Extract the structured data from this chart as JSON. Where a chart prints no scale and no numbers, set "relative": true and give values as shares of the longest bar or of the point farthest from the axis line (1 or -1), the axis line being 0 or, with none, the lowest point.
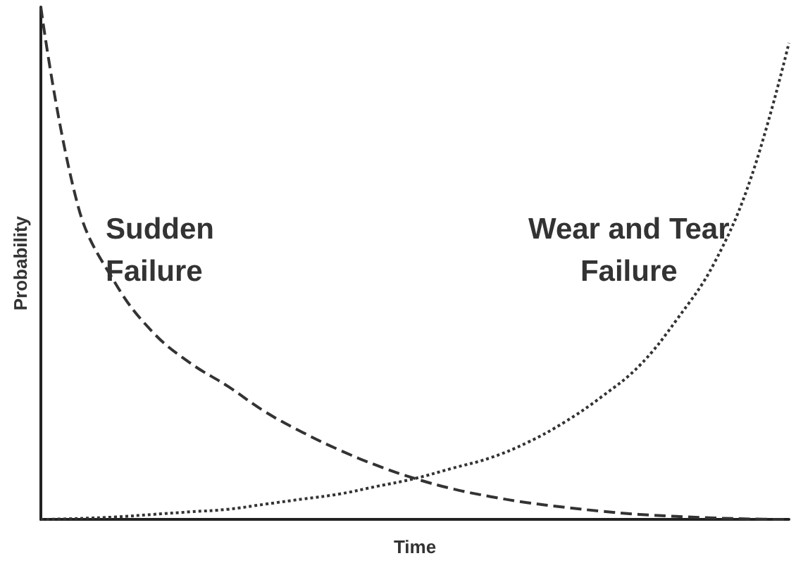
{
  "chart_data": {
    "type": "line",
    "relative": true,
    "xlabel": "Time",
    "ylabel": "Probability",
    "legend": false,
    "grid": false,
    "marker": "none",
    "categories": [
      null,
      null,
      null,
      null,
      null,
      null,
      null,
      null,
      null,
      null,
      null,
      null,
      null,
      null,
      null,
      null,
      null,
      null,
      null,
      null,
      null
    ],
    "series": [
      {
        "name": "Sudden Failure",
        "color": "#333333",
        "line_style": "dashed",
        "values": [
          1,
          0.61,
          0.46,
          0.365,
          0.305,
          0.26,
          0.21,
          0.17,
          0.135,
          0.105,
          0.08,
          0.06,
          0.045,
          0.033,
          0.024,
          0.016,
          0.01,
          0.006,
          0.003,
          0.001,
          0
        ]
      },
      {
        "name": "Wear and Tear Failure",
        "color": "#333333",
        "line_style": "dotted",
        "values": [
          0,
          0.002,
          0.005,
          0.01,
          0.015,
          0.02,
          0.03,
          0.04,
          0.05,
          0.065,
          0.08,
          0.1,
          0.12,
          0.15,
          0.19,
          0.24,
          0.3,
          0.39,
          0.5,
          0.67,
          0.93
        ]
      }
    ]
  }
}
